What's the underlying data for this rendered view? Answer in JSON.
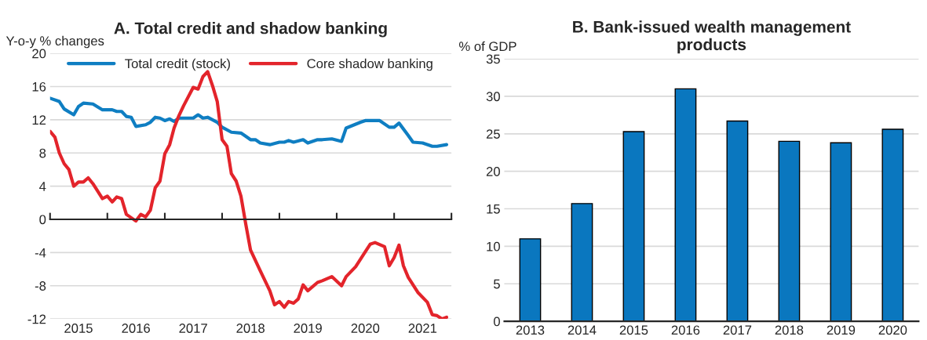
{
  "chart_data": [
    {
      "type": "line",
      "title": "A. Total credit and shadow banking",
      "ylabel": "Y-o-y % changes",
      "xlim": [
        "2015-01-01",
        "2022-01-01"
      ],
      "xticks": [
        {
          "value": "2015-01-01",
          "label": null
        },
        {
          "value": "2015-07-01",
          "label": "2015"
        },
        {
          "value": "2016-01-01",
          "label": null
        },
        {
          "value": "2016-07-01",
          "label": "2016"
        },
        {
          "value": "2017-01-01",
          "label": null
        },
        {
          "value": "2017-07-01",
          "label": "2017"
        },
        {
          "value": "2018-01-01",
          "label": null
        },
        {
          "value": "2018-07-01",
          "label": "2018"
        },
        {
          "value": "2019-01-01",
          "label": null
        },
        {
          "value": "2019-07-01",
          "label": "2019"
        },
        {
          "value": "2020-01-01",
          "label": null
        },
        {
          "value": "2020-07-01",
          "label": "2020"
        },
        {
          "value": "2021-01-01",
          "label": null
        },
        {
          "value": "2021-07-01",
          "label": "2021"
        },
        {
          "value": "2022-01-01",
          "label": null
        }
      ],
      "ylim": [
        -12,
        20
      ],
      "yticks": [
        -12,
        -8,
        -4,
        0,
        4,
        8,
        12,
        16,
        20
      ],
      "grid": "y",
      "legend": "top",
      "line_style": "solid",
      "marker": "none",
      "series": [
        {
          "name": "Total credit (stock)",
          "color": "#0f7ec2",
          "x": [
            "2015-01",
            "2015-03",
            "2015-04",
            "2015-06",
            "2015-07",
            "2015-08",
            "2015-10",
            "2015-12",
            "2016-02",
            "2016-03",
            "2016-04",
            "2016-05",
            "2016-06",
            "2016-07",
            "2016-09",
            "2016-10",
            "2016-11",
            "2016-12",
            "2017-01",
            "2017-02",
            "2017-03",
            "2017-04",
            "2017-07",
            "2017-08",
            "2017-09",
            "2017-10",
            "2017-12",
            "2018-01",
            "2018-03",
            "2018-05",
            "2018-06",
            "2018-07",
            "2018-08",
            "2018-09",
            "2018-11",
            "2019-01",
            "2019-02",
            "2019-03",
            "2019-04",
            "2019-06",
            "2019-07",
            "2019-09",
            "2019-10",
            "2019-12",
            "2020-02",
            "2020-03",
            "2020-06",
            "2020-07",
            "2020-10",
            "2020-12",
            "2021-01",
            "2021-02",
            "2021-04",
            "2021-05",
            "2021-07",
            "2021-09",
            "2021-10",
            "2021-12"
          ],
          "values": [
            14.6,
            14.2,
            13.3,
            12.6,
            13.6,
            14.0,
            13.9,
            13.2,
            13.2,
            13.0,
            13.0,
            12.4,
            12.3,
            11.2,
            11.4,
            11.7,
            12.3,
            12.2,
            11.9,
            12.1,
            11.8,
            12.2,
            12.2,
            12.6,
            12.2,
            12.3,
            11.7,
            11.1,
            10.5,
            10.4,
            10.0,
            9.6,
            9.6,
            9.2,
            9.0,
            9.3,
            9.3,
            9.5,
            9.3,
            9.6,
            9.2,
            9.6,
            9.6,
            9.7,
            9.4,
            11.0,
            11.7,
            11.9,
            11.9,
            11.1,
            11.1,
            11.6,
            10.1,
            9.3,
            9.2,
            8.8,
            8.8,
            9.0
          ]
        },
        {
          "name": "Core shadow banking",
          "color": "#e3242b",
          "x": [
            "2015-01",
            "2015-02",
            "2015-03",
            "2015-04",
            "2015-05",
            "2015-06",
            "2015-07",
            "2015-08",
            "2015-09",
            "2015-10",
            "2015-12",
            "2016-01",
            "2016-02",
            "2016-03",
            "2016-04",
            "2016-05",
            "2016-07",
            "2016-08",
            "2016-09",
            "2016-10",
            "2016-11",
            "2016-12",
            "2017-01",
            "2017-02",
            "2017-03",
            "2017-04",
            "2017-05",
            "2017-07",
            "2017-08",
            "2017-09",
            "2017-10",
            "2017-11",
            "2017-12",
            "2018-01",
            "2018-02",
            "2018-03",
            "2018-04",
            "2018-05",
            "2018-06",
            "2018-07",
            "2018-09",
            "2018-11",
            "2018-12",
            "2019-01",
            "2019-02",
            "2019-03",
            "2019-04",
            "2019-05",
            "2019-06",
            "2019-07",
            "2019-09",
            "2019-10",
            "2019-12",
            "2020-02",
            "2020-03",
            "2020-05",
            "2020-07",
            "2020-08",
            "2020-09",
            "2020-11",
            "2020-12",
            "2021-01",
            "2021-02",
            "2021-03",
            "2021-04",
            "2021-06",
            "2021-08",
            "2021-09",
            "2021-10",
            "2021-11",
            "2021-12"
          ],
          "values": [
            10.6,
            9.9,
            8.0,
            6.7,
            6.0,
            4.0,
            4.5,
            4.5,
            5.0,
            4.3,
            2.5,
            2.8,
            2.1,
            2.7,
            2.5,
            0.6,
            -0.2,
            0.6,
            0.3,
            1.1,
            3.8,
            4.6,
            7.9,
            9.0,
            11.0,
            12.5,
            13.7,
            15.9,
            15.7,
            17.2,
            17.8,
            16.1,
            14.2,
            9.6,
            8.8,
            5.5,
            4.6,
            2.8,
            -0.6,
            -3.7,
            -6.2,
            -8.6,
            -10.3,
            -9.9,
            -10.6,
            -9.9,
            -10.1,
            -9.6,
            -7.9,
            -8.6,
            -7.6,
            -7.4,
            -6.9,
            -8.0,
            -6.9,
            -5.7,
            -3.9,
            -3.0,
            -2.8,
            -3.3,
            -5.6,
            -4.6,
            -3.1,
            -5.6,
            -7.0,
            -8.8,
            -10.0,
            -11.5,
            -11.6,
            -12.0,
            -11.8
          ]
        }
      ]
    },
    {
      "type": "bar",
      "title": "B. Bank-issued wealth management products",
      "ylabel": "% of GDP",
      "categories": [
        "2013",
        "2014",
        "2015",
        "2016",
        "2017",
        "2018",
        "2019",
        "2020"
      ],
      "ylim": [
        0,
        35
      ],
      "yticks": [
        0,
        5,
        10,
        15,
        20,
        25,
        30,
        35
      ],
      "grid": "y",
      "series": [
        {
          "color": "#0a77bf",
          "values": [
            11.0,
            15.7,
            25.3,
            31.0,
            26.7,
            24.0,
            23.8,
            25.6
          ]
        }
      ]
    }
  ]
}
